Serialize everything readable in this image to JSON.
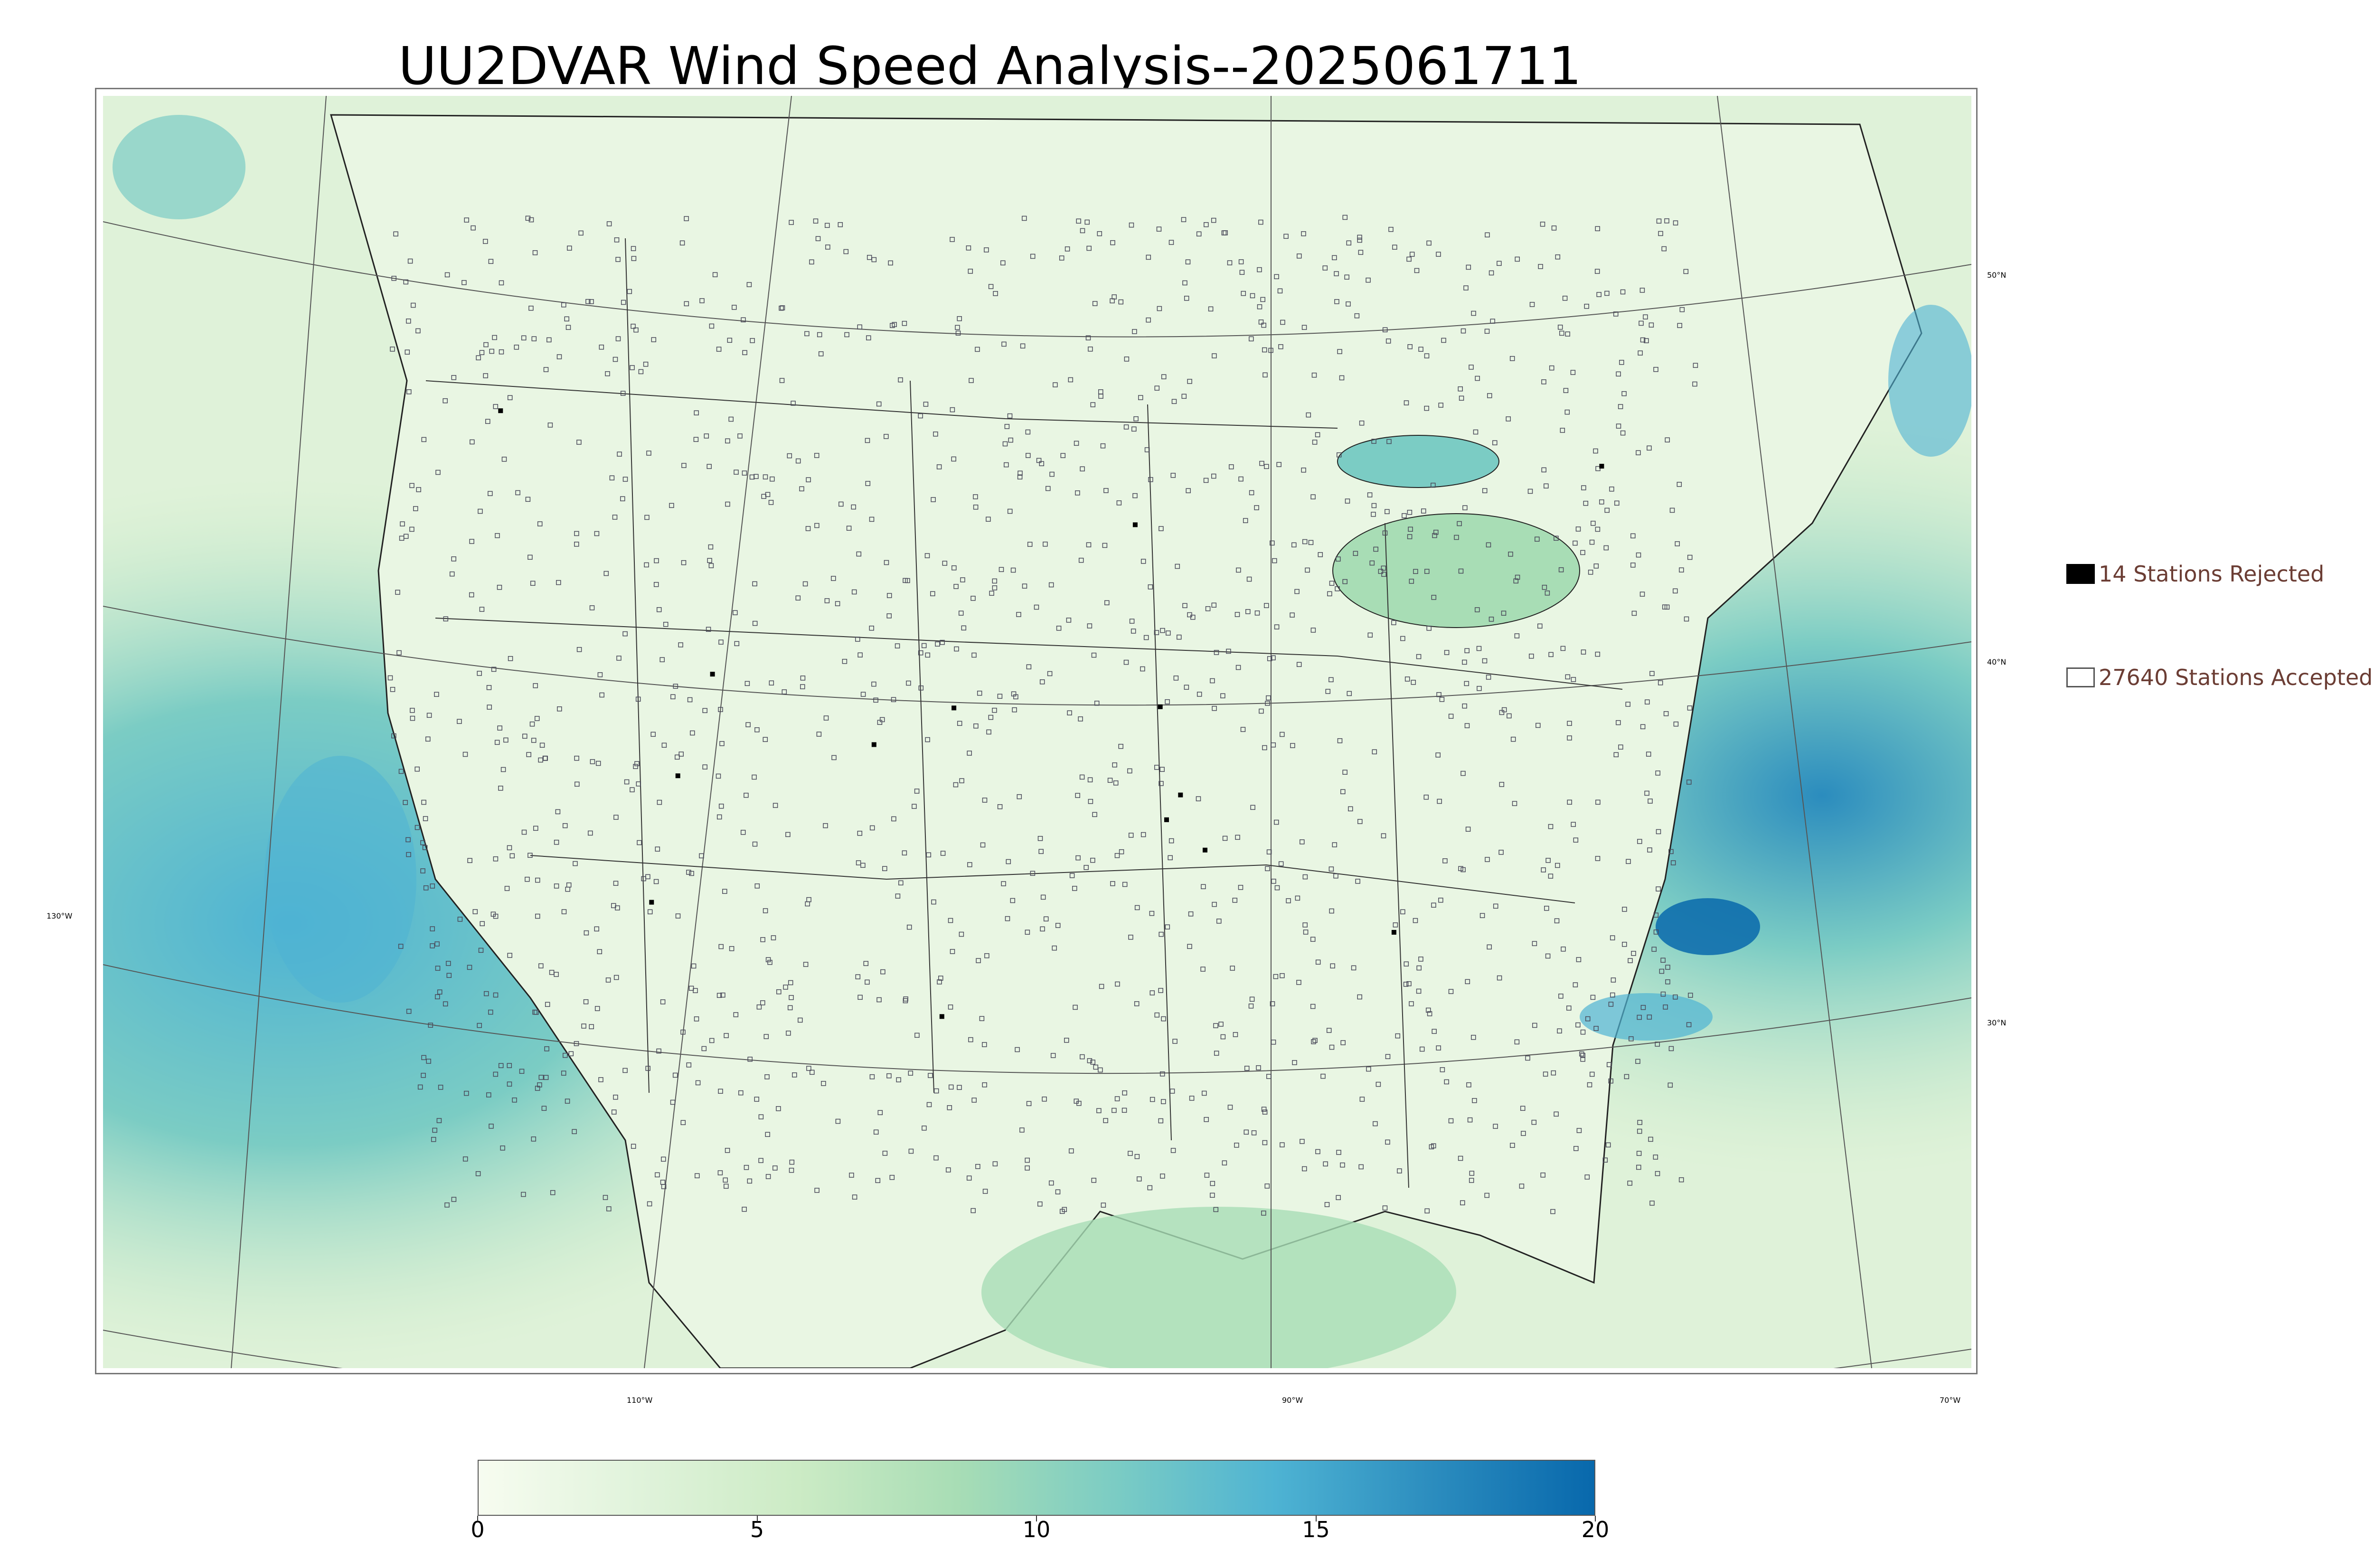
{
  "title": "UU2DVAR Wind Speed Analysis--2025061711",
  "graticule": {
    "lat_labels": [
      "50°N",
      "40°N",
      "30°N"
    ],
    "lon_labels": [
      "130°W",
      "110°W",
      "90°W",
      "70°W"
    ]
  },
  "legend": {
    "rejected_label": "14 Stations Rejected",
    "accepted_label": "27640 Stations Accepted",
    "rejected_color": "#000000",
    "accepted_color": "#ffffff"
  },
  "colorbar": {
    "ticks": [
      "0",
      "5",
      "10",
      "15",
      "20"
    ],
    "min": 0,
    "max": 20,
    "colors": [
      "#f7fcf0",
      "#e0f3db",
      "#ccebc5",
      "#a8ddb5",
      "#7bccc4",
      "#4eb3d3",
      "#2b8cbe",
      "#0868ac"
    ]
  }
}
